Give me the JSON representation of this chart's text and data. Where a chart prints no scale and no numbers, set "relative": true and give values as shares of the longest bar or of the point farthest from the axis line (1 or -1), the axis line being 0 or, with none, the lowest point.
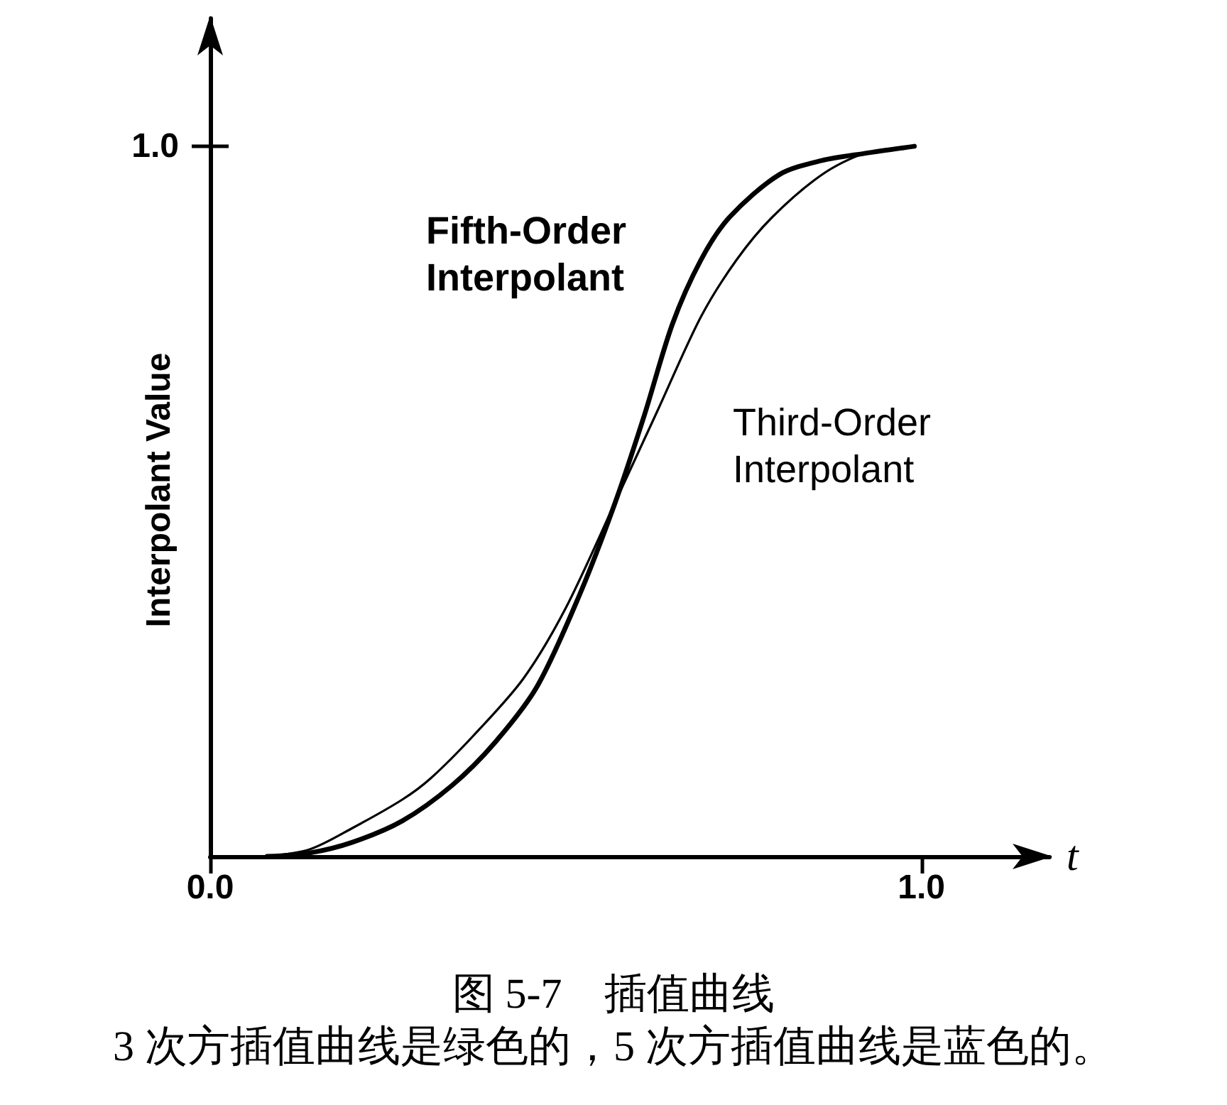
{
  "chart_data": {
    "type": "line",
    "title": "图 5-7　插值曲线",
    "xlabel": "t",
    "ylabel": "Interpolant Value",
    "annotations": [
      "1.0",
      "3 次方插值曲线是绿色的，5 次方插值曲线是蓝色的。"
    ],
    "relative": true,
    "xlim": [
      0,
      1.18
    ],
    "xticks": [
      {
        "value": 0,
        "label": "0.0"
      },
      {
        "value": 1,
        "label": "1.0"
      }
    ],
    "grid": false,
    "legend": false,
    "marker": "none",
    "line_style": "solid",
    "series": [
      {
        "name": "Fifth-Order Interpolant",
        "color": "#000000",
        "x": [
          0.08,
          0.14,
          0.2,
          0.27,
          0.34,
          0.4,
          0.46,
          0.52,
          0.57,
          0.61,
          0.65,
          0.69,
          0.73,
          0.8,
          0.86,
          0.92,
          0.99
        ],
        "values": [
          0,
          0.005,
          0.02,
          0.05,
          0.1,
          0.16,
          0.24,
          0.37,
          0.5,
          0.62,
          0.75,
          0.84,
          0.9,
          0.96,
          0.98,
          0.99,
          1.0
        ]
      },
      {
        "name": "Third-Order Interpolant",
        "color": "#000000",
        "x": [
          0.08,
          0.14,
          0.2,
          0.27,
          0.31,
          0.37,
          0.44,
          0.5,
          0.57,
          0.63,
          0.69,
          0.74,
          0.79,
          0.86,
          0.92,
          0.99
        ],
        "values": [
          0,
          0.01,
          0.04,
          0.08,
          0.11,
          0.17,
          0.25,
          0.35,
          0.5,
          0.63,
          0.76,
          0.84,
          0.9,
          0.96,
          0.99,
          1.0
        ]
      }
    ]
  }
}
